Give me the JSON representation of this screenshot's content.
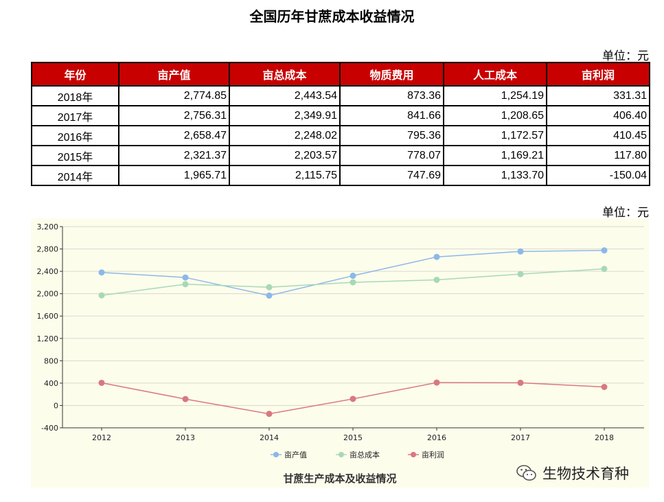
{
  "title": "全国历年甘蔗成本收益情况",
  "unit_label": "单位：元",
  "table": {
    "headers": [
      "年份",
      "亩产值",
      "亩总成本",
      "物质费用",
      "人工成本",
      "亩利润"
    ],
    "rows": [
      [
        "2018年",
        "2,774.85",
        "2,443.54",
        "873.36",
        "1,254.19",
        "331.31"
      ],
      [
        "2017年",
        "2,756.31",
        "2,349.91",
        "841.66",
        "1,208.65",
        "406.40"
      ],
      [
        "2016年",
        "2,658.47",
        "2,248.02",
        "795.36",
        "1,172.57",
        "410.45"
      ],
      [
        "2015年",
        "2,321.37",
        "2,203.57",
        "778.07",
        "1,169.21",
        "117.80"
      ],
      [
        "2014年",
        "1,965.71",
        "2,115.75",
        "747.69",
        "1,133.70",
        "-150.04"
      ]
    ]
  },
  "chart_data": {
    "type": "line",
    "title": "甘蔗生产成本及收益情况",
    "categories": [
      "2012",
      "2013",
      "2014",
      "2015",
      "2016",
      "2017",
      "2018"
    ],
    "series": [
      {
        "name": "亩产值",
        "color": "#8cb8e8",
        "values": [
          2380,
          2290,
          1966,
          2321,
          2658,
          2756,
          2775
        ]
      },
      {
        "name": "亩总成本",
        "color": "#a8d8b8",
        "values": [
          1970,
          2170,
          2116,
          2204,
          2248,
          2350,
          2444
        ]
      },
      {
        "name": "亩利润",
        "color": "#d97880",
        "values": [
          405,
          115,
          -150,
          118,
          410,
          406,
          331
        ]
      }
    ],
    "ylim": [
      -400,
      3200
    ],
    "yticks": [
      -400,
      0,
      400,
      800,
      1200,
      1600,
      2000,
      2400,
      2800,
      3200
    ],
    "ytick_labels": [
      "-400",
      "0",
      "400",
      "800",
      "1,200",
      "1,600",
      "2,000",
      "2,400",
      "2,800",
      "3,200"
    ],
    "grid": true,
    "legend": "bottom-center"
  },
  "watermark": {
    "icon": "wechat-icon",
    "text": "生物技术育种"
  }
}
